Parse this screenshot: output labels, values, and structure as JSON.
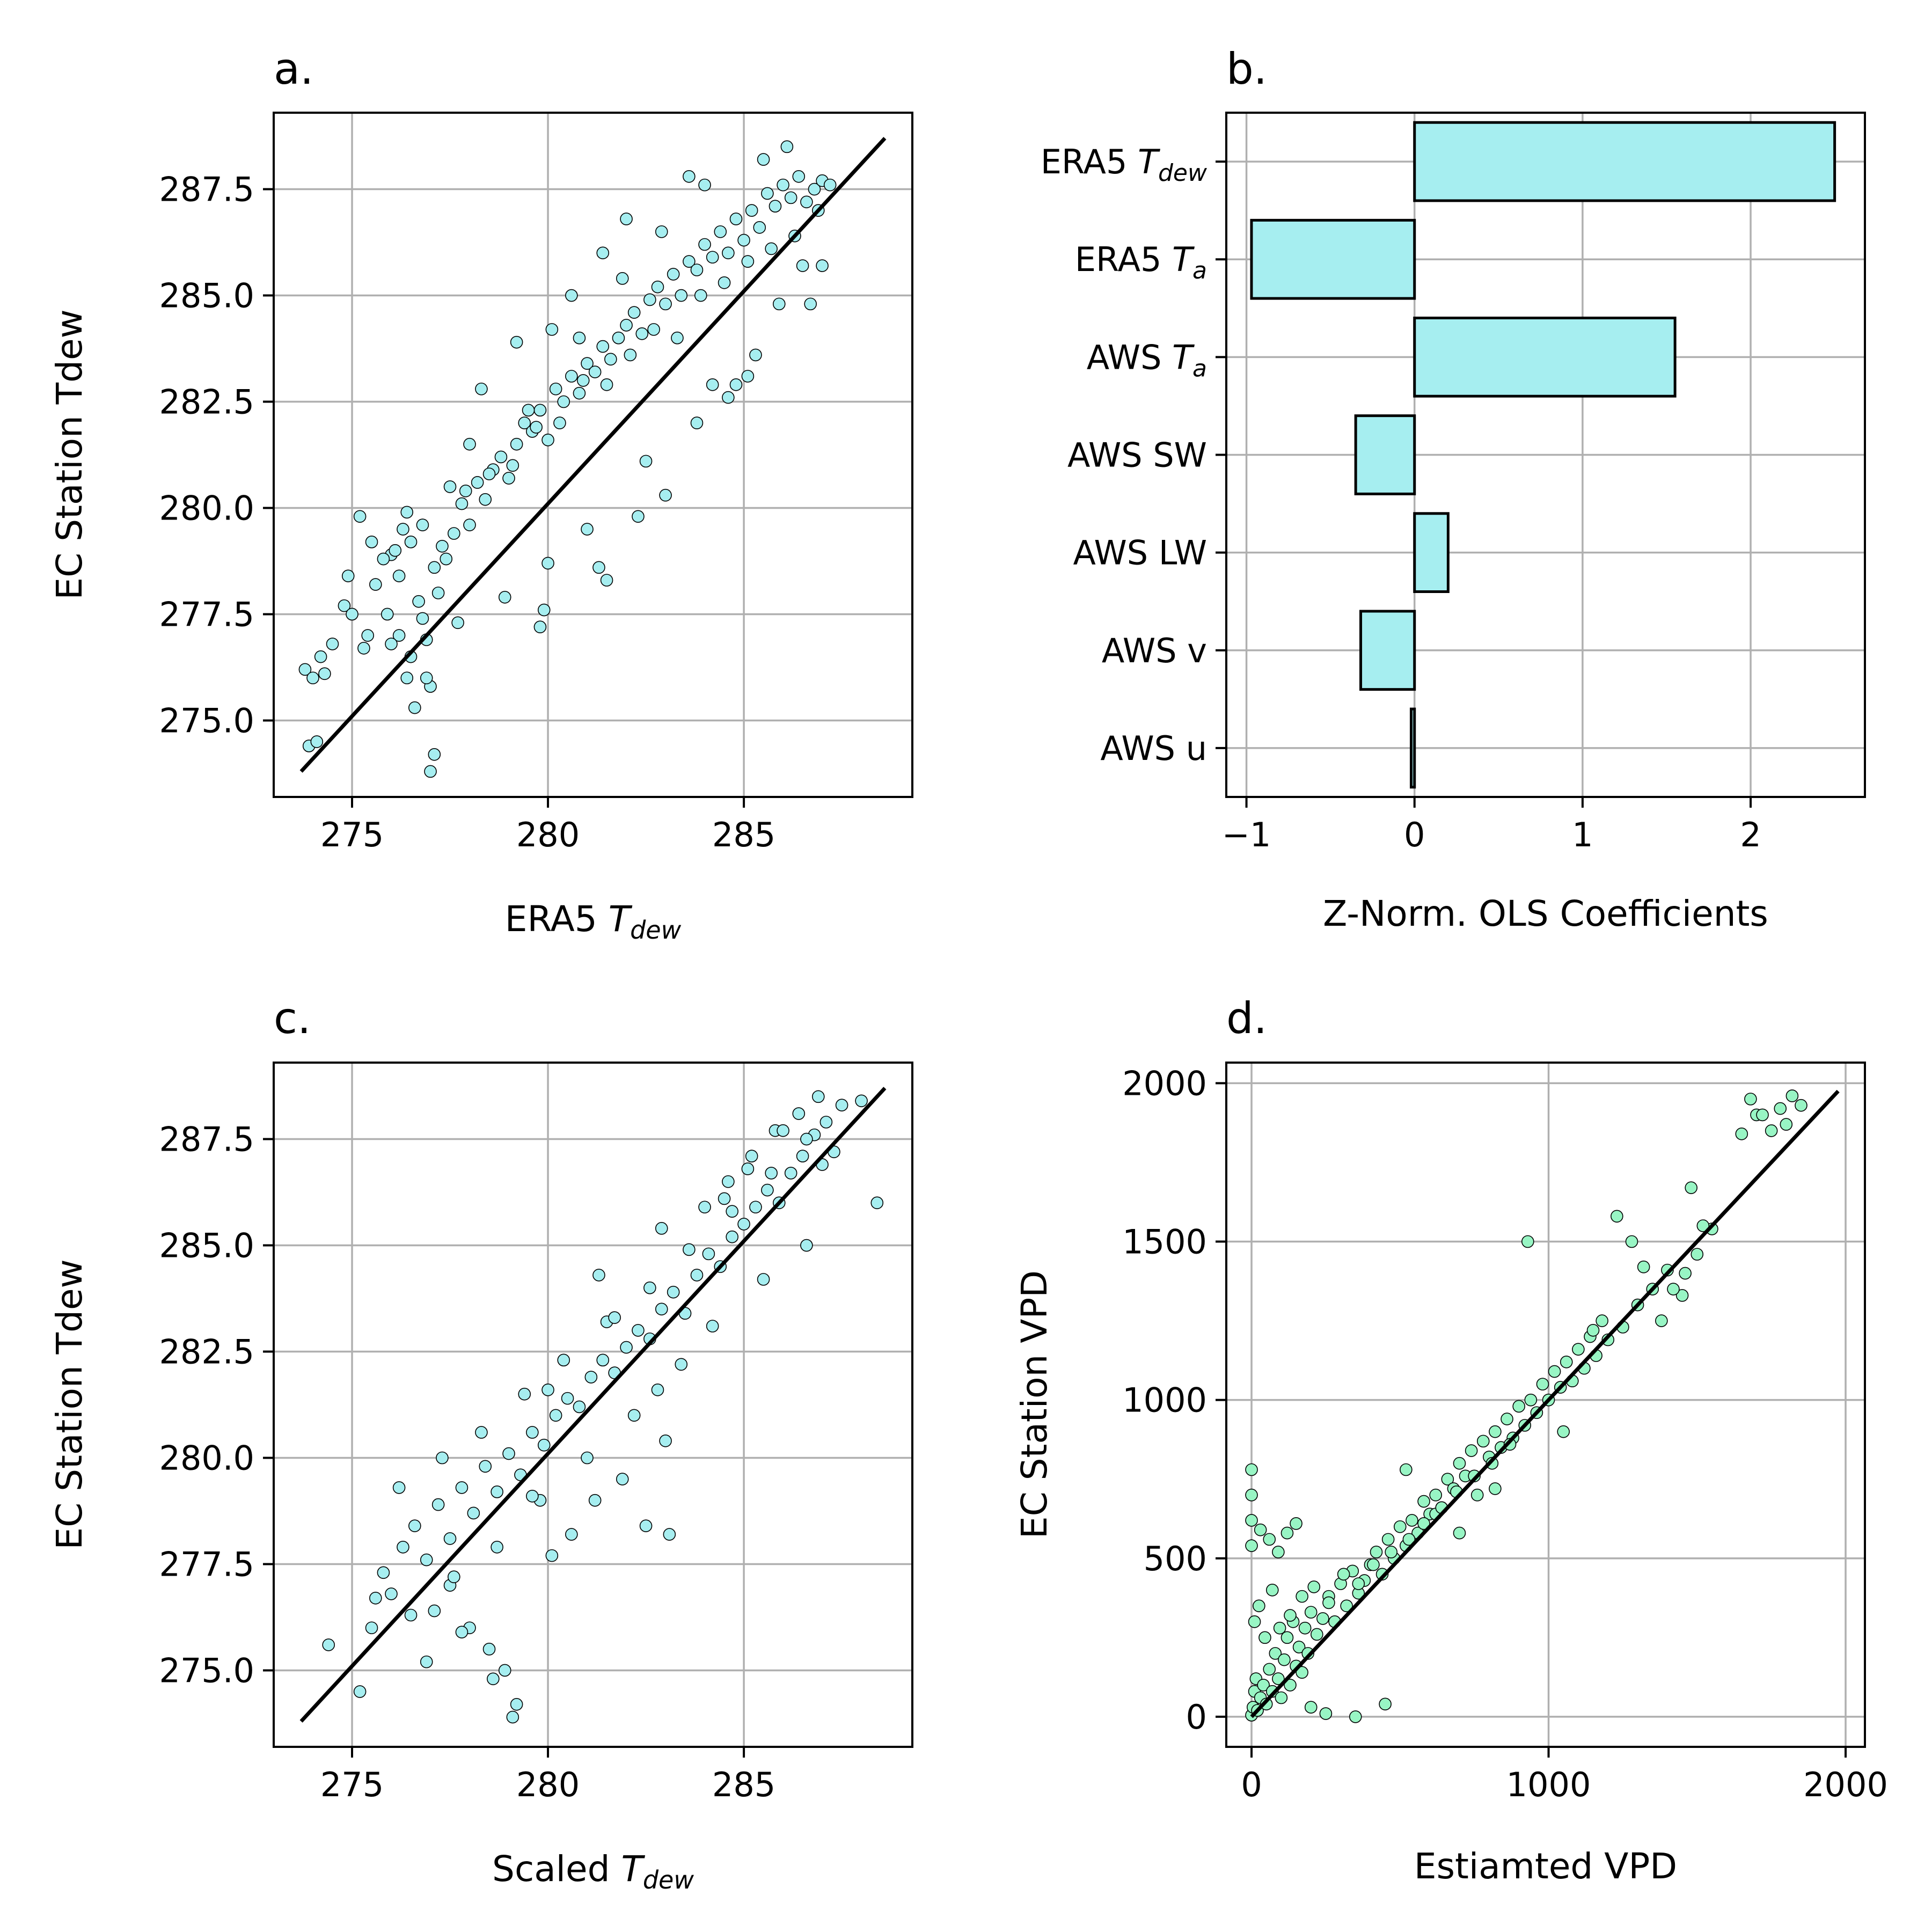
{
  "colors": {
    "cyan_fill": "#a6eef0",
    "green_fill": "#98f5c4",
    "grid": "#b0b0b0",
    "line": "#000000"
  },
  "chart_data": [
    {
      "id": "a",
      "type": "scatter",
      "title": "a.",
      "xlabel": {
        "main": "ERA5 ",
        "var": "T",
        "sub": "dew"
      },
      "ylabel": "EC Station Tdew",
      "xlim": [
        273.0,
        289.3
      ],
      "ylim": [
        273.2,
        289.3
      ],
      "xticks": [
        275,
        280,
        285
      ],
      "xtick_labels": [
        "275",
        "280",
        "285"
      ],
      "yticks": [
        275.0,
        277.5,
        280.0,
        282.5,
        285.0,
        287.5
      ],
      "ytick_labels": [
        "275.0",
        "277.5",
        "280.0",
        "282.5",
        "285.0",
        "287.5"
      ],
      "grid": true,
      "identity_line": [
        [
          273.7,
          273.8
        ],
        [
          288.6,
          288.7
        ]
      ],
      "marker_color": "cyan",
      "x": [
        273.8,
        274.0,
        274.2,
        274.5,
        273.9,
        274.1,
        274.3,
        274.8,
        275.2,
        275.0,
        275.4,
        275.6,
        275.9,
        276.0,
        276.2,
        276.4,
        276.5,
        276.7,
        276.9,
        277.0,
        277.1,
        276.3,
        276.6,
        277.2,
        277.4,
        277.6,
        277.8,
        278.0,
        278.2,
        278.4,
        278.6,
        278.8,
        279.0,
        279.2,
        279.4,
        279.6,
        279.8,
        280.0,
        280.2,
        280.4,
        280.6,
        280.8,
        281.0,
        281.2,
        281.4,
        281.6,
        281.8,
        282.0,
        282.2,
        282.4,
        282.6,
        282.8,
        283.0,
        283.2,
        283.4,
        283.6,
        283.8,
        284.0,
        284.2,
        284.4,
        284.6,
        284.8,
        285.0,
        285.2,
        285.4,
        285.6,
        285.8,
        286.0,
        286.2,
        286.4,
        286.6,
        286.8,
        287.0,
        287.2,
        275.8,
        276.1,
        276.8,
        277.3,
        277.9,
        278.5,
        279.1,
        279.7,
        280.3,
        280.9,
        281.5,
        282.1,
        282.7,
        283.3,
        283.9,
        284.5,
        285.1,
        285.7,
        286.3,
        286.9,
        276.2,
        276.9,
        277.1,
        277.0,
        276.5,
        276.8,
        279.8,
        279.9,
        281.5,
        281.3,
        282.3,
        283.0,
        284.8,
        285.1,
        286.5,
        285.9,
        284.2,
        280.6,
        281.4,
        279.2,
        278.3,
        280.1,
        282.9,
        284.0,
        285.5,
        286.1,
        283.6,
        282.0,
        281.9,
        280.8,
        279.5,
        278.0,
        277.5,
        276.4,
        275.5,
        274.9,
        285.3,
        286.7,
        287.0,
        284.6,
        283.8,
        282.5,
        281.0,
        280.0,
        278.9,
        277.7,
        276.0,
        275.3
      ],
      "y": [
        276.2,
        276.0,
        276.5,
        276.8,
        274.4,
        274.5,
        276.1,
        277.7,
        279.8,
        277.5,
        277.0,
        278.2,
        277.5,
        278.9,
        278.4,
        276.0,
        279.2,
        277.8,
        276.9,
        275.8,
        278.6,
        279.5,
        275.3,
        278.0,
        278.8,
        279.4,
        280.1,
        279.6,
        280.6,
        280.2,
        280.9,
        281.2,
        280.7,
        281.5,
        282.0,
        281.8,
        282.3,
        281.6,
        282.8,
        282.5,
        283.1,
        282.7,
        283.4,
        283.2,
        283.8,
        283.5,
        284.0,
        284.3,
        284.6,
        284.1,
        284.9,
        285.2,
        284.8,
        285.5,
        285.0,
        285.8,
        285.6,
        286.2,
        285.9,
        286.5,
        286.0,
        286.8,
        286.3,
        287.0,
        286.6,
        287.4,
        287.1,
        287.6,
        287.3,
        287.8,
        287.2,
        287.5,
        287.7,
        287.6,
        278.8,
        279.0,
        279.6,
        279.1,
        280.4,
        280.8,
        281.0,
        281.9,
        282.0,
        283.0,
        282.9,
        283.6,
        284.2,
        284.0,
        285.0,
        285.3,
        285.8,
        286.1,
        286.4,
        287.0,
        277.0,
        276.0,
        274.2,
        273.8,
        276.5,
        277.4,
        277.2,
        277.6,
        278.3,
        278.6,
        279.8,
        280.3,
        282.9,
        283.1,
        285.7,
        284.8,
        282.9,
        285.0,
        286.0,
        283.9,
        282.8,
        284.2,
        286.5,
        287.6,
        288.2,
        288.5,
        287.8,
        286.8,
        285.4,
        284.0,
        282.3,
        281.5,
        280.5,
        279.9,
        279.2,
        278.4,
        283.6,
        284.8,
        285.7,
        282.6,
        282.0,
        281.1,
        279.5,
        278.7,
        277.9,
        277.3,
        276.8,
        276.7
      ]
    },
    {
      "id": "b",
      "type": "bar",
      "orientation": "horizontal",
      "title": "b.",
      "xlabel": "Z-Norm. OLS Coefficients",
      "xlim": [
        -1.12,
        2.68
      ],
      "xticks": [
        -1,
        0,
        1,
        2
      ],
      "xtick_labels": [
        "−1",
        "0",
        "1",
        "2"
      ],
      "grid": true,
      "categories": [
        {
          "main": "ERA5 ",
          "var": "T",
          "sub": "dew"
        },
        {
          "main": "ERA5 ",
          "var": "T",
          "sub": "a"
        },
        {
          "main": "AWS ",
          "var": "T",
          "sub": "a"
        },
        {
          "main": "AWS SW",
          "var": "",
          "sub": ""
        },
        {
          "main": "AWS LW",
          "var": "",
          "sub": ""
        },
        {
          "main": "AWS v",
          "var": "",
          "sub": ""
        },
        {
          "main": "AWS u",
          "var": "",
          "sub": ""
        }
      ],
      "values": [
        2.5,
        -0.97,
        1.55,
        -0.35,
        0.2,
        -0.32,
        -0.02
      ]
    },
    {
      "id": "c",
      "type": "scatter",
      "title": "c.",
      "xlabel": {
        "main": "Scaled ",
        "var": "T",
        "sub": "dew"
      },
      "ylabel": "EC Station Tdew",
      "xlim": [
        273.0,
        289.3
      ],
      "ylim": [
        273.2,
        289.3
      ],
      "xticks": [
        275,
        280,
        285
      ],
      "xtick_labels": [
        "275",
        "280",
        "285"
      ],
      "yticks": [
        275.0,
        277.5,
        280.0,
        282.5,
        285.0,
        287.5
      ],
      "ytick_labels": [
        "275.0",
        "277.5",
        "280.0",
        "282.5",
        "285.0",
        "287.5"
      ],
      "grid": true,
      "identity_line": [
        [
          273.7,
          273.8
        ],
        [
          288.6,
          288.7
        ]
      ],
      "marker_color": "cyan",
      "x": [
        274.4,
        275.2,
        275.5,
        275.8,
        276.0,
        276.3,
        276.6,
        276.9,
        277.2,
        277.5,
        277.8,
        278.1,
        278.4,
        278.7,
        279.0,
        279.3,
        279.6,
        279.9,
        280.2,
        280.5,
        280.8,
        281.1,
        281.4,
        281.7,
        282.0,
        282.3,
        282.6,
        282.9,
        283.2,
        283.5,
        283.8,
        284.1,
        284.4,
        284.7,
        285.0,
        285.3,
        285.6,
        285.9,
        286.2,
        286.5,
        286.8,
        287.1,
        287.5,
        288.0,
        288.4,
        278.0,
        278.5,
        278.9,
        279.2,
        279.1,
        278.6,
        277.8,
        277.1,
        277.5,
        276.9,
        280.1,
        280.6,
        281.2,
        281.9,
        282.5,
        283.1,
        283.0,
        282.8,
        281.3,
        284.0,
        284.6,
        285.2,
        285.8,
        286.4,
        286.9,
        287.3,
        285.5,
        284.2,
        283.4,
        282.2,
        281.0,
        279.8,
        278.7,
        277.6,
        276.5,
        275.6,
        276.2,
        277.3,
        278.3,
        279.4,
        280.4,
        281.5,
        282.6,
        283.6,
        284.7,
        285.7,
        286.6,
        280.0,
        279.6,
        281.7,
        282.9,
        284.5,
        285.1,
        286.0,
        286.6,
        287.0
      ],
      "y": [
        275.6,
        274.5,
        276.0,
        277.3,
        276.8,
        277.9,
        278.4,
        277.6,
        278.9,
        278.1,
        279.3,
        278.7,
        279.8,
        279.2,
        280.1,
        279.6,
        280.6,
        280.3,
        281.0,
        281.4,
        281.2,
        281.9,
        282.3,
        282.0,
        282.6,
        283.0,
        282.8,
        283.5,
        283.9,
        283.4,
        284.3,
        284.8,
        284.5,
        285.2,
        285.5,
        285.9,
        286.3,
        286.0,
        286.7,
        287.1,
        287.6,
        287.9,
        288.3,
        288.4,
        286.0,
        276.0,
        275.5,
        275.0,
        274.2,
        273.9,
        274.8,
        275.9,
        276.4,
        277.0,
        275.2,
        277.7,
        278.2,
        279.0,
        279.5,
        278.4,
        278.2,
        280.4,
        281.6,
        284.3,
        285.9,
        286.5,
        287.1,
        287.7,
        288.1,
        288.5,
        287.2,
        284.2,
        283.1,
        282.2,
        281.0,
        280.0,
        279.0,
        277.9,
        277.2,
        276.3,
        276.7,
        279.3,
        280.0,
        280.6,
        281.5,
        282.3,
        283.2,
        284.0,
        284.9,
        285.8,
        286.7,
        287.5,
        281.6,
        279.1,
        283.3,
        285.4,
        286.1,
        286.8,
        287.7,
        285.0,
        286.9
      ]
    },
    {
      "id": "d",
      "type": "scatter",
      "title": "d.",
      "xlabel": {
        "main": "Estiamted VPD",
        "var": "",
        "sub": ""
      },
      "ylabel": "EC Station VPD",
      "xlim": [
        -85,
        2065
      ],
      "ylim": [
        -95,
        2065
      ],
      "xticks": [
        0,
        1000,
        2000
      ],
      "xtick_labels": [
        "0",
        "1000",
        "2000"
      ],
      "yticks": [
        0,
        500,
        1000,
        1500,
        2000
      ],
      "ytick_labels": [
        "0",
        "500",
        "1000",
        "1500",
        "2000"
      ],
      "grid": true,
      "identity_line": [
        [
          0,
          0
        ],
        [
          1975,
          1975
        ]
      ],
      "marker_color": "green",
      "x": [
        0,
        5,
        10,
        15,
        20,
        30,
        40,
        50,
        60,
        70,
        80,
        90,
        100,
        110,
        120,
        130,
        140,
        150,
        160,
        170,
        180,
        190,
        200,
        220,
        240,
        260,
        280,
        300,
        320,
        340,
        360,
        380,
        400,
        420,
        440,
        460,
        480,
        500,
        520,
        540,
        560,
        580,
        600,
        620,
        640,
        660,
        680,
        700,
        720,
        740,
        760,
        780,
        800,
        820,
        840,
        860,
        880,
        900,
        920,
        940,
        960,
        980,
        1000,
        1020,
        1040,
        1060,
        1080,
        1100,
        1120,
        1140,
        1160,
        1180,
        1200,
        1250,
        1300,
        1350,
        1400,
        1450,
        1500,
        1550,
        1650,
        1700,
        1750,
        1800,
        1850,
        0,
        0,
        0,
        0,
        30,
        60,
        90,
        120,
        150,
        200,
        250,
        350,
        450,
        520,
        620,
        700,
        820,
        930,
        1050,
        1150,
        1230,
        1280,
        1320,
        1380,
        1420,
        1460,
        1480,
        1520,
        1680,
        1720,
        1780,
        1820,
        10,
        25,
        45,
        70,
        95,
        130,
        170,
        210,
        260,
        310,
        360,
        410,
        470,
        530,
        580,
        640,
        690,
        750,
        810,
        870
      ],
      "y": [
        5,
        30,
        80,
        120,
        20,
        60,
        100,
        40,
        150,
        80,
        200,
        120,
        60,
        180,
        250,
        100,
        300,
        160,
        220,
        140,
        280,
        200,
        330,
        260,
        310,
        380,
        300,
        420,
        350,
        460,
        390,
        430,
        480,
        520,
        450,
        560,
        500,
        600,
        540,
        620,
        580,
        680,
        640,
        700,
        660,
        750,
        720,
        800,
        760,
        840,
        700,
        870,
        820,
        900,
        850,
        940,
        880,
        980,
        920,
        1000,
        960,
        1050,
        1000,
        1090,
        1040,
        1120,
        1060,
        1160,
        1100,
        1200,
        1140,
        1250,
        1190,
        1230,
        1300,
        1350,
        1410,
        1330,
        1460,
        1540,
        1840,
        1900,
        1850,
        1870,
        1930,
        780,
        700,
        620,
        540,
        590,
        560,
        520,
        580,
        610,
        30,
        10,
        0,
        40,
        780,
        640,
        580,
        720,
        1500,
        900,
        1220,
        1580,
        1500,
        1420,
        1250,
        1350,
        1400,
        1670,
        1550,
        1950,
        1900,
        1920,
        1960,
        300,
        350,
        250,
        400,
        280,
        320,
        380,
        410,
        360,
        450,
        420,
        480,
        520,
        560,
        610,
        660,
        710,
        760,
        800,
        860
      ]
    }
  ]
}
